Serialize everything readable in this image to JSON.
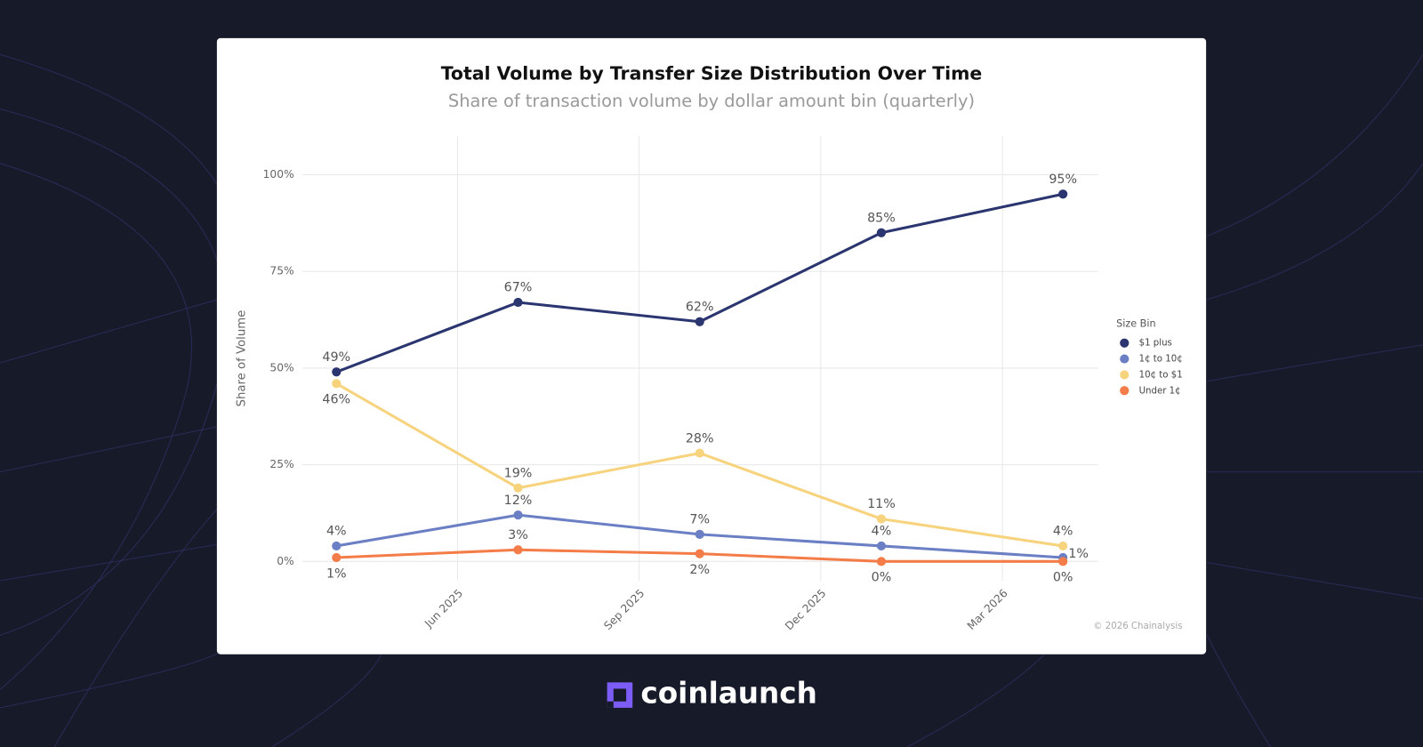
{
  "chart_data": {
    "type": "line",
    "title": "Total Volume by Transfer Size Distribution Over Time",
    "subtitle": "Share of transaction volume by dollar amount bin (quarterly)",
    "y_label": "Share of Volume",
    "legend_title": "Size Bin",
    "legend_position": "right",
    "source": "© 2026 Chainalysis",
    "grid": true,
    "x": [
      "2025-04",
      "2025-07",
      "2025-10",
      "2026-01",
      "2026-04"
    ],
    "xlim": [
      "2025-03",
      "2026-05"
    ],
    "xticks": [
      {
        "value": "2025-06",
        "label": "Jun 2025"
      },
      {
        "value": "2025-09",
        "label": "Sep 2025"
      },
      {
        "value": "2025-12",
        "label": "Dec 2025"
      },
      {
        "value": "2026-03",
        "label": "Mar 2026"
      }
    ],
    "ylim": [
      -5,
      110
    ],
    "yticks": [
      {
        "value": 0,
        "label": "0%"
      },
      {
        "value": 25,
        "label": "25%"
      },
      {
        "value": 50,
        "label": "50%"
      },
      {
        "value": 75,
        "label": "75%"
      },
      {
        "value": 100,
        "label": "100%"
      }
    ],
    "series": [
      {
        "name": "$1 plus",
        "color": "#2b3570",
        "values": [
          49,
          67,
          62,
          85,
          95
        ],
        "value_labels": [
          "49%",
          "67%",
          "62%",
          "85%",
          "95%"
        ]
      },
      {
        "name": "1¢ to 10¢",
        "color": "#6b7fc4",
        "values": [
          4,
          12,
          7,
          4,
          1
        ],
        "value_labels": [
          "4%",
          "12%",
          "7%",
          "4%",
          "1%"
        ]
      },
      {
        "name": "10¢ to $1",
        "color": "#f7d37e",
        "values": [
          46,
          19,
          28,
          11,
          4
        ],
        "value_labels": [
          "46%",
          "19%",
          "28%",
          "11%",
          "4%"
        ]
      },
      {
        "name": "Under 1¢",
        "color": "#f47c48",
        "values": [
          1,
          3,
          2,
          0,
          0
        ],
        "value_labels": [
          "1%",
          "3%",
          "2%",
          "0%",
          "0%"
        ]
      }
    ]
  },
  "brand": "coinlaunch"
}
